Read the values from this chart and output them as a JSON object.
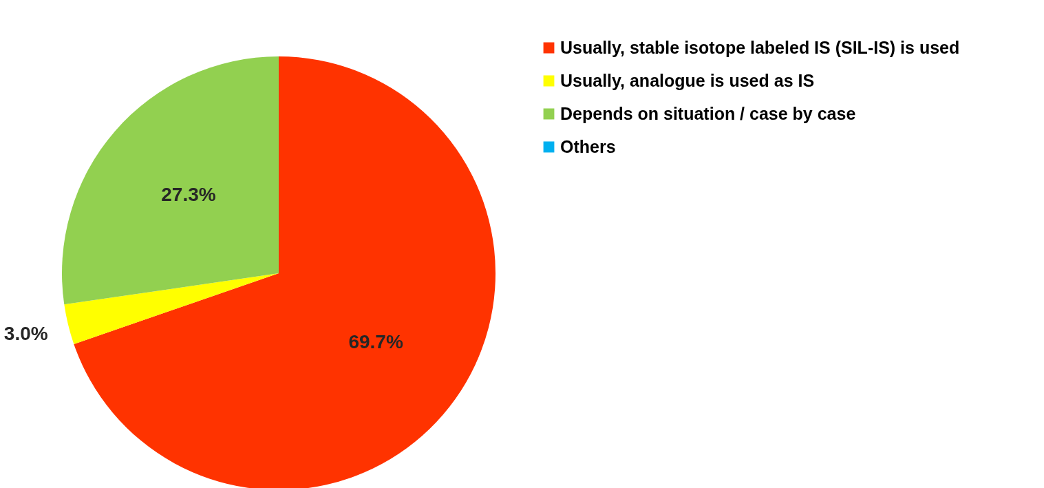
{
  "chart_data": {
    "type": "pie",
    "categories": [
      "Usually, stable isotope labeled IS (SIL-IS) is used",
      "Usually, analogue is used as IS",
      "Depends on situation / case by case",
      "Others"
    ],
    "values": [
      69.7,
      3.0,
      27.3,
      0
    ],
    "colors": [
      "#ff3300",
      "#ffff00",
      "#92d050",
      "#00b0f0"
    ],
    "value_labels": [
      "69.7%",
      "3.0%",
      "27.3%",
      null
    ],
    "legend": "right"
  }
}
